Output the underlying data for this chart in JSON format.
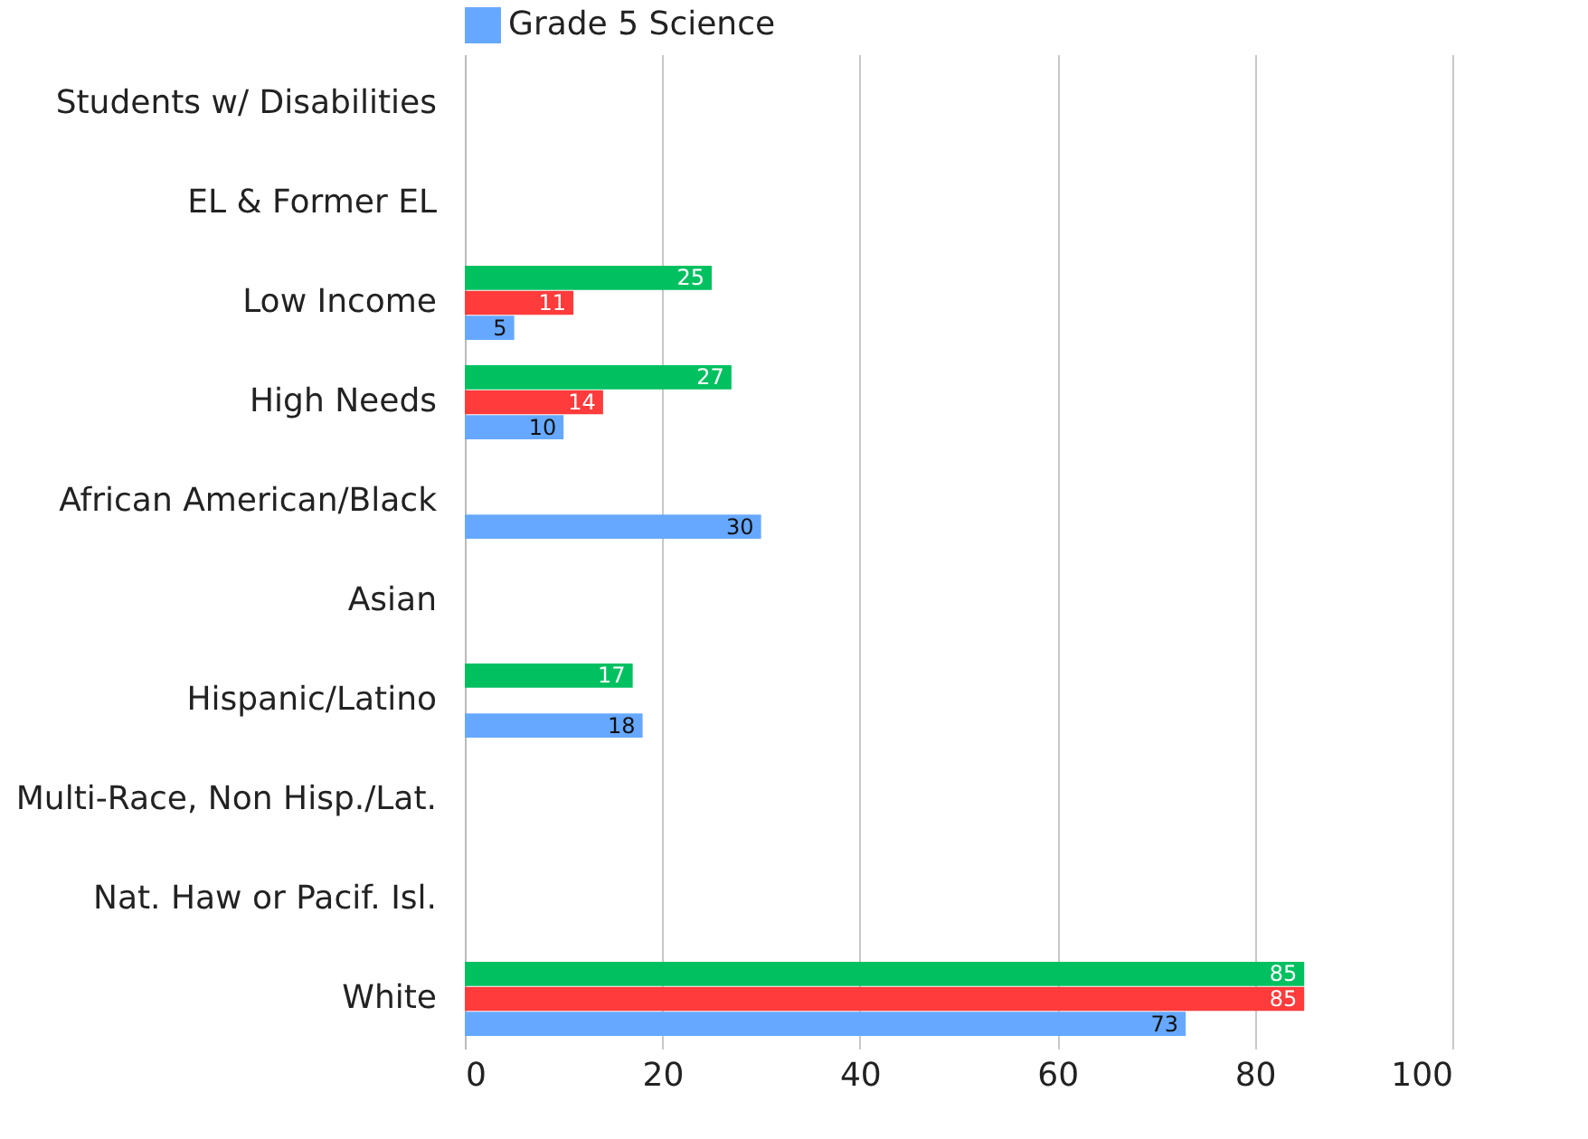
{
  "chart_data": {
    "type": "bar",
    "orientation": "horizontal",
    "categories": [
      "Students w/ Disabilities",
      "EL & Former EL",
      "Low Income",
      "High Needs",
      "African American/Black",
      "Asian",
      "Hispanic/Latino",
      "Multi-Race, Non Hisp./Lat.",
      "Nat. Haw or Pacif. Isl.",
      "White"
    ],
    "series": [
      {
        "color": "#00c060",
        "values": [
          null,
          null,
          25,
          27,
          null,
          null,
          17,
          null,
          null,
          85
        ]
      },
      {
        "color": "#ff3b3b",
        "values": [
          null,
          null,
          11,
          14,
          null,
          null,
          null,
          null,
          null,
          85
        ]
      },
      {
        "name": "Grade 5 Science",
        "color": "#66a8ff",
        "values": [
          null,
          null,
          5,
          10,
          30,
          null,
          18,
          null,
          null,
          73
        ]
      }
    ],
    "xlim": [
      0,
      100
    ],
    "xticks": [
      0,
      20,
      40,
      60,
      80,
      100
    ],
    "grid": "x",
    "legend": "top",
    "data_labels": true
  }
}
